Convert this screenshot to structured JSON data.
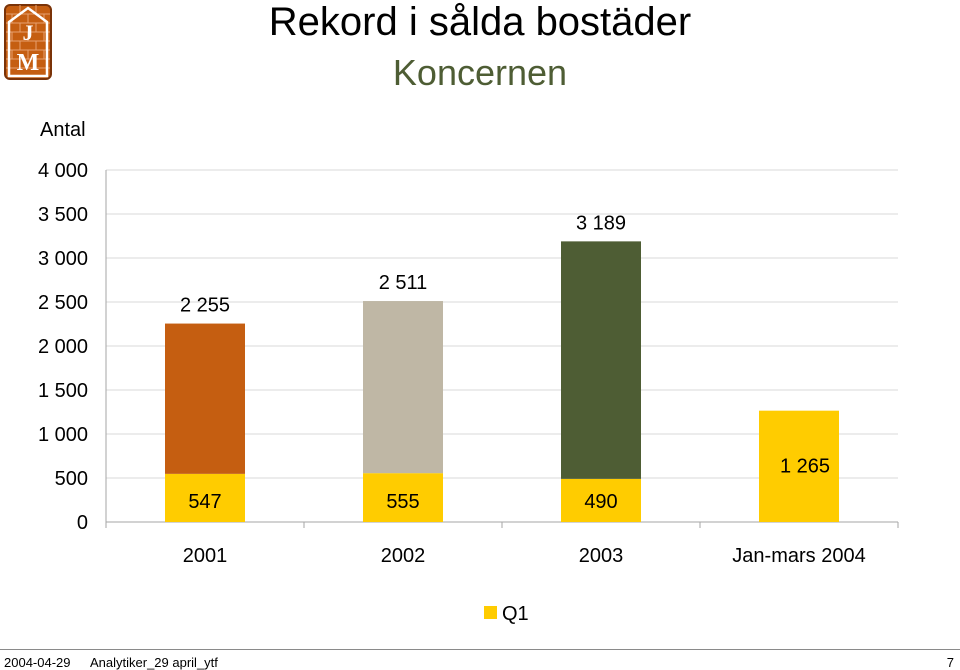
{
  "header": {
    "title": "Rekord i sålda bostäder",
    "subtitle": "Koncernen"
  },
  "logo": {
    "text": "JM"
  },
  "footer": {
    "date": "2004-04-29",
    "source": "Analytiker_29 april_ytf",
    "page": "7"
  },
  "colors": {
    "q1": "#ffcc00",
    "bar_2001": "#c55e11",
    "bar_2002": "#bfb7a5",
    "bar_2003": "#4e5d34",
    "subtitle": "#4e5d34"
  },
  "chart_data": {
    "type": "bar",
    "stacked": true,
    "categories": [
      "2001",
      "2002",
      "2003",
      "Jan-mars 2004"
    ],
    "ylabel": "Antal",
    "ylim": [
      0,
      4000
    ],
    "yticks": [
      0,
      500,
      1000,
      1500,
      2000,
      2500,
      3000,
      3500,
      4000
    ],
    "ytick_labels": [
      "0",
      "500",
      "1 000",
      "1 500",
      "2 000",
      "2 500",
      "3 000",
      "3 500",
      "4 000"
    ],
    "grid": true,
    "legend_position": "bottom",
    "series": [
      {
        "name": "Q1",
        "values": [
          547,
          555,
          490,
          1265
        ],
        "labels": [
          "547",
          "555",
          "490",
          "1 265"
        ]
      },
      {
        "values": [
          1708,
          1956,
          2699,
          null
        ]
      }
    ],
    "total_labels": [
      "2 255",
      "2 511",
      "3 189",
      null
    ]
  }
}
